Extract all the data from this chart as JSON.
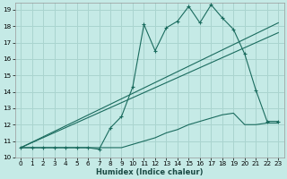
{
  "xlabel": "Humidex (Indice chaleur)",
  "bg_color": "#c5eae6",
  "grid_color": "#aad4cf",
  "line_color": "#1a6b5e",
  "xlim": [
    -0.5,
    23.5
  ],
  "ylim": [
    10,
    19.4
  ],
  "xticks": [
    0,
    1,
    2,
    3,
    4,
    5,
    6,
    7,
    8,
    9,
    10,
    11,
    12,
    13,
    14,
    15,
    16,
    17,
    18,
    19,
    20,
    21,
    22,
    23
  ],
  "yticks": [
    10,
    11,
    12,
    13,
    14,
    15,
    16,
    17,
    18,
    19
  ],
  "series1_x": [
    0,
    1,
    2,
    3,
    4,
    5,
    6,
    7,
    8,
    9,
    10,
    11,
    12,
    13,
    14,
    15,
    16,
    17,
    18,
    19,
    20,
    21,
    22,
    23
  ],
  "series1_y": [
    10.6,
    10.6,
    10.6,
    10.6,
    10.6,
    10.6,
    10.6,
    10.5,
    11.8,
    12.5,
    14.3,
    18.1,
    16.5,
    17.9,
    18.3,
    19.2,
    18.2,
    19.3,
    18.5,
    17.8,
    16.3,
    14.1,
    12.2,
    12.2
  ],
  "series2_x": [
    0,
    1,
    2,
    3,
    4,
    5,
    6,
    7,
    8,
    9,
    10,
    11,
    12,
    13,
    14,
    15,
    16,
    17,
    18,
    19,
    20,
    21,
    22,
    23
  ],
  "series2_y": [
    10.6,
    10.6,
    10.6,
    10.6,
    10.6,
    10.6,
    10.6,
    10.6,
    10.6,
    10.6,
    10.8,
    11.0,
    11.2,
    11.5,
    11.7,
    12.0,
    12.2,
    12.4,
    12.6,
    12.7,
    12.0,
    12.0,
    12.1,
    12.1
  ],
  "series3_x": [
    0,
    23
  ],
  "series3_y": [
    10.6,
    17.6
  ],
  "series4_x": [
    0,
    23
  ],
  "series4_y": [
    10.6,
    18.2
  ],
  "xlabel_fontsize": 6.0,
  "tick_fontsize": 5.2
}
